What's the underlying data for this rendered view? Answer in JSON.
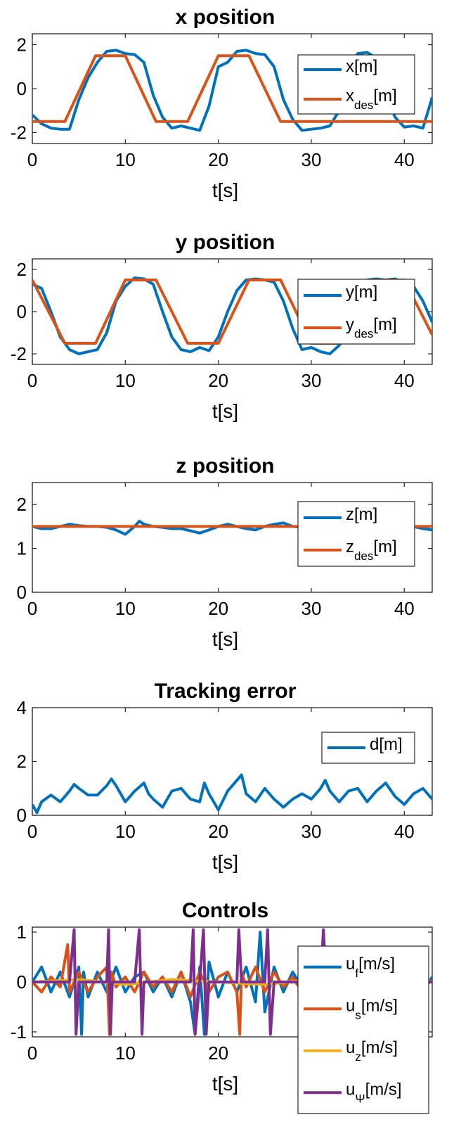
{
  "colors": {
    "blue": "#0072BD",
    "orange": "#D95319",
    "yellow": "#EDB120",
    "purple": "#7E2F8E"
  },
  "chart_data": [
    {
      "type": "line",
      "title": "x position",
      "xlabel": "t[s]",
      "xlim": [
        0,
        43
      ],
      "ylim": [
        -2.5,
        2.5
      ],
      "xticks": [
        0,
        10,
        20,
        30,
        40
      ],
      "yticks": [
        -2,
        0,
        2
      ],
      "legend_position": "top-right",
      "series": [
        {
          "name": "x[m]",
          "color": "blue",
          "x": [
            0,
            1,
            2,
            3,
            4,
            5,
            6,
            7,
            8,
            9,
            10,
            11,
            12,
            13,
            14,
            15,
            16,
            17,
            18,
            19,
            20,
            21,
            22,
            23,
            24,
            25,
            26,
            27,
            28,
            29,
            30,
            31,
            32,
            33,
            34,
            35,
            36,
            37,
            38,
            39,
            40,
            41,
            42,
            43
          ],
          "y": [
            -1.2,
            -1.6,
            -1.8,
            -1.85,
            -1.85,
            -0.5,
            0.5,
            1.2,
            1.7,
            1.75,
            1.6,
            1.55,
            1.2,
            -0.3,
            -1.3,
            -1.8,
            -1.7,
            -1.8,
            -1.9,
            -0.8,
            1.0,
            1.2,
            1.7,
            1.75,
            1.6,
            1.55,
            1.0,
            -0.5,
            -1.4,
            -1.9,
            -1.85,
            -1.8,
            -1.7,
            -1.0,
            0.8,
            1.6,
            1.65,
            1.4,
            -0.2,
            -1.3,
            -1.75,
            -1.7,
            -1.8,
            -0.4
          ]
        },
        {
          "name": "x_des[m]",
          "label": "x",
          "sub": "des",
          "unit": "[m]",
          "color": "orange",
          "x": [
            0,
            3.5,
            6.8,
            10,
            13.3,
            16.7,
            20,
            23.3,
            26.7,
            43
          ],
          "y": [
            -1.5,
            -1.5,
            1.5,
            1.5,
            -1.5,
            -1.5,
            1.5,
            1.5,
            -1.5,
            -1.5
          ]
        }
      ],
      "legend": [
        {
          "label": "x",
          "sub": "",
          "unit": "[m]"
        },
        {
          "label": "x",
          "sub": "des",
          "unit": "[m]"
        }
      ]
    },
    {
      "type": "line",
      "title": "y position",
      "xlabel": "t[s]",
      "xlim": [
        0,
        43
      ],
      "ylim": [
        -2.5,
        2.5
      ],
      "xticks": [
        0,
        10,
        20,
        30,
        40
      ],
      "yticks": [
        -2,
        0,
        2
      ],
      "legend_position": "top-right",
      "series": [
        {
          "name": "y[m]",
          "color": "blue",
          "x": [
            0,
            1,
            2,
            3,
            4,
            5,
            6,
            7,
            8,
            9,
            10,
            11,
            12,
            13,
            14,
            15,
            16,
            17,
            18,
            19,
            20,
            21,
            22,
            23,
            24,
            25,
            26,
            27,
            28,
            29,
            30,
            31,
            32,
            33,
            34,
            35,
            36,
            37,
            38,
            39,
            40,
            41,
            42,
            43
          ],
          "y": [
            1.3,
            1.1,
            0.0,
            -1.2,
            -1.8,
            -2.0,
            -1.9,
            -1.8,
            -1.0,
            0.5,
            1.2,
            1.6,
            1.55,
            1.3,
            0.0,
            -1.2,
            -1.8,
            -1.9,
            -1.7,
            -1.85,
            -1.2,
            0.0,
            1.0,
            1.5,
            1.55,
            1.5,
            1.4,
            0.5,
            -0.8,
            -1.8,
            -1.7,
            -1.9,
            -2.0,
            -1.6,
            -0.5,
            0.8,
            1.5,
            1.55,
            1.5,
            1.55,
            1.4,
            1.2,
            0.5,
            -0.5
          ]
        },
        {
          "name": "y_des[m]",
          "color": "orange",
          "x": [
            0,
            3.5,
            6.8,
            10,
            13.3,
            16.7,
            20,
            23.3,
            26.7,
            30,
            33.3,
            36.7,
            40,
            43
          ],
          "y": [
            1.5,
            -1.5,
            -1.5,
            1.5,
            1.5,
            -1.5,
            -1.5,
            1.5,
            1.5,
            -1.5,
            -1.5,
            1.5,
            1.5,
            -1.1
          ]
        }
      ],
      "legend": [
        {
          "label": "y",
          "sub": "",
          "unit": "[m]"
        },
        {
          "label": "y",
          "sub": "des",
          "unit": "[m]"
        }
      ]
    },
    {
      "type": "line",
      "title": "z position",
      "xlabel": "t[s]",
      "xlim": [
        0,
        43
      ],
      "ylim": [
        0,
        2.5
      ],
      "xticks": [
        0,
        10,
        20,
        30,
        40
      ],
      "yticks": [
        0,
        1,
        2
      ],
      "legend_position": "top-right",
      "series": [
        {
          "name": "z[m]",
          "color": "blue",
          "x": [
            0,
            1,
            2,
            3,
            4,
            5,
            6,
            7,
            8,
            9,
            10,
            11,
            11.5,
            12,
            13,
            14,
            15,
            16,
            17,
            18,
            19,
            20,
            21,
            22,
            23,
            24,
            25,
            26,
            27,
            28,
            29,
            30,
            31,
            32,
            33,
            34,
            35,
            36,
            37,
            38,
            39,
            40,
            41,
            42,
            43
          ],
          "y": [
            1.5,
            1.45,
            1.45,
            1.5,
            1.55,
            1.52,
            1.5,
            1.5,
            1.48,
            1.42,
            1.32,
            1.5,
            1.62,
            1.55,
            1.5,
            1.48,
            1.45,
            1.45,
            1.4,
            1.35,
            1.42,
            1.5,
            1.55,
            1.5,
            1.45,
            1.42,
            1.5,
            1.55,
            1.58,
            1.5,
            1.48,
            1.5,
            1.52,
            1.5,
            1.55,
            1.5,
            1.5,
            1.52,
            1.5,
            1.48,
            1.5,
            1.5,
            1.5,
            1.45,
            1.42
          ]
        },
        {
          "name": "z_des[m]",
          "color": "orange",
          "x": [
            0,
            43
          ],
          "y": [
            1.5,
            1.5
          ]
        }
      ],
      "legend": [
        {
          "label": "z",
          "sub": "",
          "unit": "[m]"
        },
        {
          "label": "z",
          "sub": "des",
          "unit": "[m]"
        }
      ]
    },
    {
      "type": "line",
      "title": "Tracking error",
      "xlabel": "t[s]",
      "xlim": [
        0,
        43
      ],
      "ylim": [
        0,
        4
      ],
      "xticks": [
        0,
        10,
        20,
        30,
        40
      ],
      "yticks": [
        0,
        2,
        4
      ],
      "legend_position": "top-right",
      "series": [
        {
          "name": "d[m]",
          "color": "blue",
          "x": [
            0,
            0.5,
            1,
            2,
            3,
            4,
            4.5,
            5,
            6,
            7,
            8,
            8.5,
            9,
            10,
            11,
            12,
            12.5,
            13,
            14,
            15,
            16,
            17,
            18,
            18.5,
            19,
            20,
            21,
            22,
            22.5,
            23,
            24,
            25,
            26,
            27,
            28,
            29,
            30,
            31,
            31.5,
            32,
            33,
            34,
            35,
            36,
            37,
            38,
            39,
            40,
            41,
            42,
            43
          ],
          "y": [
            0.4,
            0.1,
            0.5,
            0.75,
            0.5,
            0.9,
            1.15,
            1.0,
            0.75,
            0.75,
            1.1,
            1.35,
            1.1,
            0.5,
            0.9,
            1.2,
            0.8,
            0.6,
            0.3,
            0.9,
            1.0,
            0.6,
            0.5,
            1.2,
            0.8,
            0.2,
            0.9,
            1.3,
            1.5,
            0.8,
            0.5,
            1.0,
            0.6,
            0.3,
            0.6,
            0.8,
            0.6,
            1.0,
            1.3,
            0.9,
            0.5,
            0.9,
            1.0,
            0.5,
            0.9,
            1.2,
            0.7,
            0.4,
            0.8,
            1.0,
            0.6
          ]
        }
      ],
      "legend": [
        {
          "label": "d",
          "sub": "",
          "unit": "[m]"
        }
      ]
    },
    {
      "type": "line",
      "title": "Controls",
      "xlabel": "t[s]",
      "xlim": [
        0,
        43
      ],
      "ylim": [
        -1.1,
        1.1
      ],
      "xticks": [
        0,
        10,
        20
      ],
      "yticks": [
        -1,
        0,
        1
      ],
      "legend_position": "right",
      "series": [
        {
          "name": "u_f[m/s]",
          "color": "blue",
          "x": [
            0,
            1,
            2,
            3,
            4,
            5,
            5.3,
            5.5,
            6,
            7,
            8,
            9,
            10,
            11,
            12,
            13,
            14,
            15,
            16,
            17,
            17.5,
            18,
            18.5,
            19,
            20,
            21,
            22,
            23,
            24,
            24.5,
            25,
            26,
            27,
            28,
            29,
            30,
            31,
            32,
            33,
            34,
            35,
            36,
            37,
            38,
            39,
            40,
            41,
            42,
            43
          ],
          "y": [
            0.0,
            0.3,
            -0.2,
            0.2,
            -0.3,
            0.3,
            -1.05,
            0.2,
            -0.3,
            0.2,
            -0.2,
            0.3,
            -0.2,
            0.1,
            0.2,
            -0.2,
            0.1,
            -0.3,
            0.2,
            -0.4,
            -1.05,
            0.3,
            -1.05,
            0.4,
            -0.3,
            0.2,
            -0.2,
            0.3,
            -0.4,
            1.0,
            -0.6,
            0.3,
            -0.2,
            0.2,
            -0.1,
            0.2,
            -0.3,
            0.3,
            -0.2,
            0.1,
            0.2,
            -0.2,
            0.3,
            -0.2,
            0.2,
            -0.2,
            0.3,
            -0.2,
            0.1
          ]
        },
        {
          "name": "u_s[m/s]",
          "color": "orange",
          "x": [
            0,
            1,
            2,
            3,
            3.8,
            4,
            5,
            6,
            7,
            8,
            8.3,
            8.5,
            9,
            10,
            11,
            12,
            13,
            14,
            15,
            16,
            17,
            18,
            19,
            20,
            21,
            22,
            22.3,
            22.5,
            23,
            24,
            25,
            26,
            27,
            28,
            29,
            30,
            31,
            32,
            33,
            34,
            35,
            36,
            37,
            38,
            39,
            40,
            41,
            42,
            43
          ],
          "y": [
            0.0,
            -0.2,
            0.1,
            -0.1,
            0.75,
            -0.2,
            0.2,
            -0.2,
            0.1,
            0.3,
            -1.05,
            0.2,
            -0.1,
            0.1,
            -0.2,
            0.2,
            -0.1,
            0.1,
            -0.2,
            0.2,
            -0.3,
            0.2,
            -0.2,
            0.1,
            0.2,
            -0.2,
            -1.05,
            0.2,
            -0.1,
            0.3,
            -0.2,
            0.2,
            -0.1,
            0.1,
            -0.2,
            0.2,
            -0.1,
            0.1,
            -0.2,
            0.1,
            -0.1,
            0.1,
            -0.2,
            0.1,
            -0.1,
            0.2,
            -0.1,
            0.1,
            0.0
          ]
        },
        {
          "name": "u_z[m/s]",
          "color": "yellow",
          "x": [
            0,
            5,
            10,
            15,
            20,
            25,
            30,
            35,
            40,
            43
          ],
          "y": [
            0.0,
            0.05,
            -0.05,
            0.05,
            0.0,
            -0.05,
            0.05,
            0.0,
            0.05,
            0.0
          ]
        },
        {
          "name": "u_Ψ[m/s]",
          "color": "purple",
          "x": [
            0,
            4,
            4.5,
            4.7,
            5,
            8,
            8.2,
            8.4,
            8.6,
            11,
            11.5,
            11.8,
            12,
            17,
            17.3,
            17.5,
            18,
            18.4,
            18.7,
            19,
            22,
            22.2,
            22.5,
            25,
            25.3,
            25.6,
            26,
            31,
            31.3,
            31.6,
            32,
            43
          ],
          "y": [
            0.0,
            0.0,
            1.05,
            -1.05,
            0.0,
            0.0,
            1.05,
            -1.05,
            0.0,
            0.0,
            1.05,
            -1.05,
            0.0,
            0.0,
            1.05,
            -1.05,
            0.0,
            1.05,
            -1.05,
            0.0,
            0.0,
            1.05,
            0.0,
            0.0,
            1.05,
            -1.05,
            0.0,
            0.0,
            1.05,
            0.0,
            0.0,
            0.0
          ]
        }
      ],
      "legend": [
        {
          "label": "u",
          "sub": "f",
          "unit": "[m/s]"
        },
        {
          "label": "u",
          "sub": "s",
          "unit": "[m/s]"
        },
        {
          "label": "u",
          "sub": "z",
          "unit": "[m/s]"
        },
        {
          "label": "u",
          "sub": "Ψ",
          "unit": "[m/s]"
        }
      ]
    }
  ]
}
